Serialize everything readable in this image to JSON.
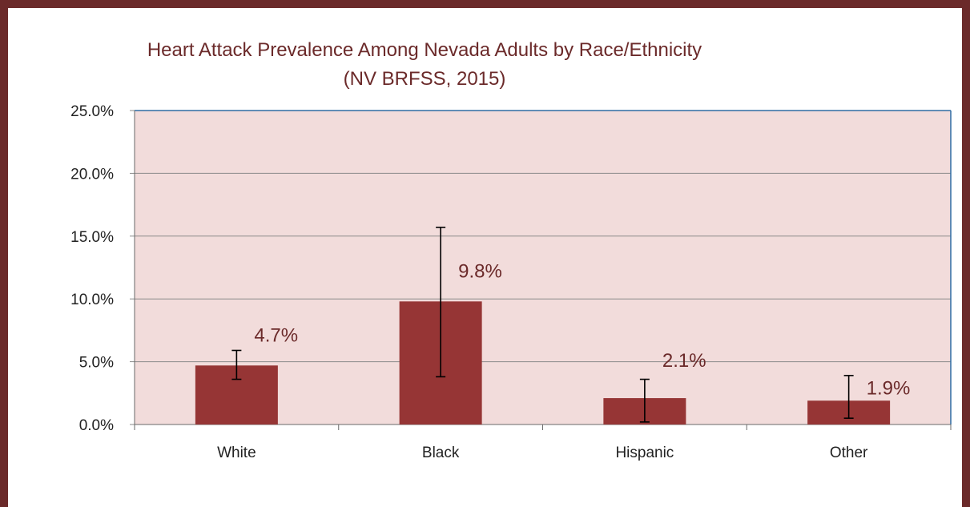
{
  "chart_data": {
    "type": "bar",
    "title": "Heart Attack Prevalence Among Nevada Adults by Race/Ethnicity",
    "subtitle": "(NV BRFSS, 2015)",
    "categories": [
      "White",
      "Black",
      "Hispanic",
      "Other"
    ],
    "values": [
      4.7,
      9.8,
      2.1,
      1.9
    ],
    "data_labels": [
      "4.7%",
      "9.8%",
      "2.1%",
      "1.9%"
    ],
    "error_low": [
      3.6,
      3.8,
      0.2,
      0.5
    ],
    "error_high": [
      5.9,
      15.7,
      3.6,
      3.9
    ],
    "ylim": [
      0,
      25
    ],
    "yticks": [
      0,
      5,
      10,
      15,
      20,
      25
    ],
    "ytick_labels": [
      "0.0%",
      "5.0%",
      "10.0%",
      "15.0%",
      "20.0%",
      "25.0%"
    ],
    "grid": true,
    "xlabel": "",
    "ylabel": "",
    "colors": {
      "bar": "#963535",
      "plot_bg": "#f2dcdb",
      "frame": "#6b2a2a",
      "title": "#6b2a2a",
      "grid": "#8a8a8a",
      "plot_border": "#2e6da4"
    }
  }
}
